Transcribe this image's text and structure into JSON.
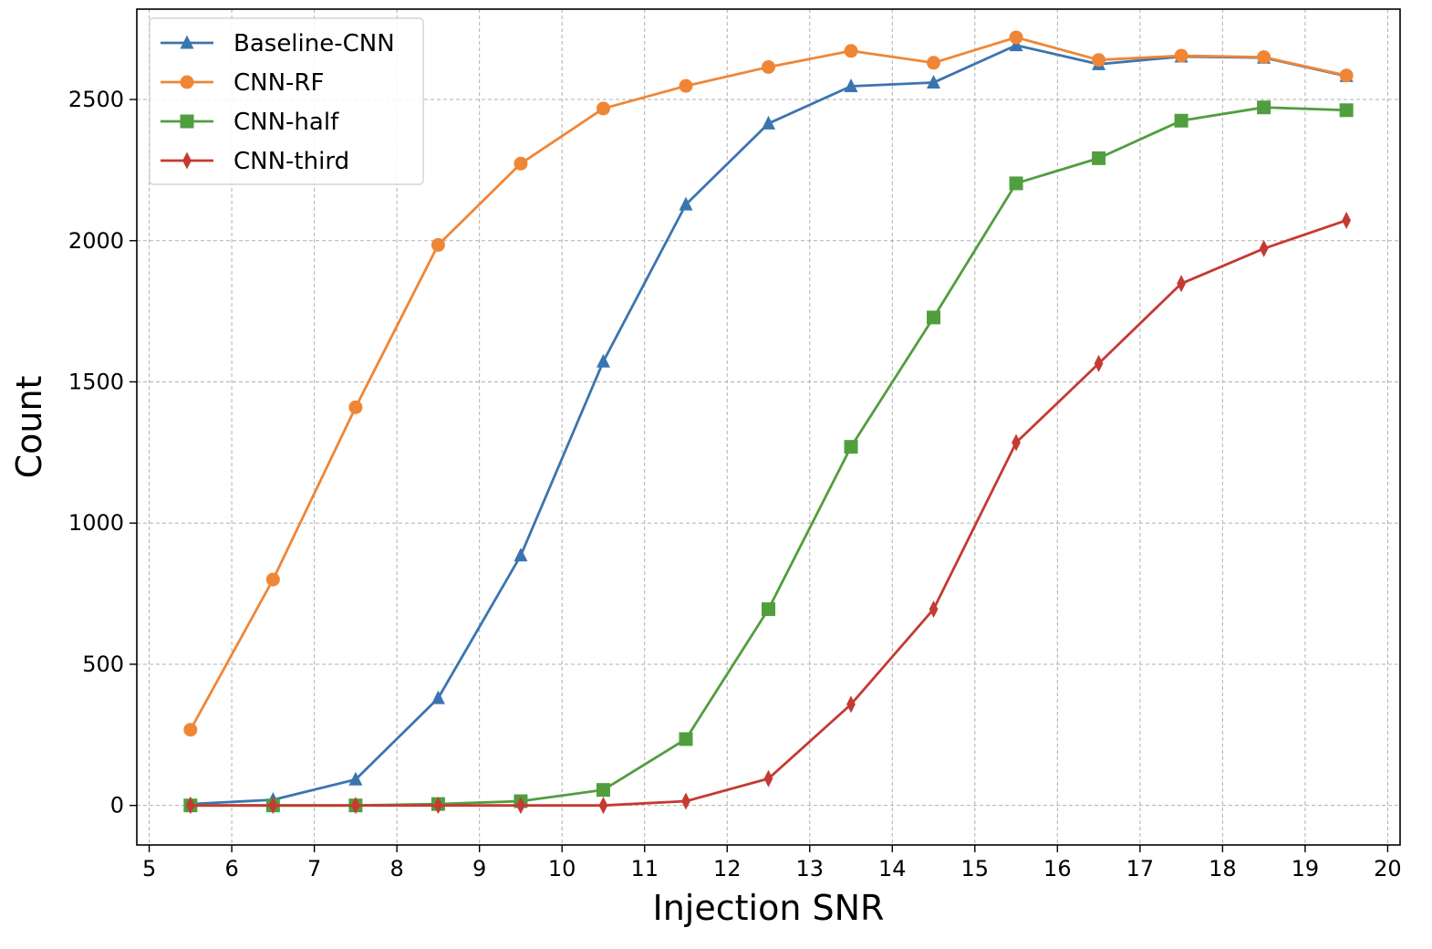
{
  "chart_data": {
    "type": "line",
    "title": "",
    "xlabel": "Injection SNR",
    "ylabel": "Count",
    "xlim": [
      4.85,
      20.15
    ],
    "ylim": [
      -140,
      2820
    ],
    "xticks": [
      5,
      6,
      7,
      8,
      9,
      10,
      11,
      12,
      13,
      14,
      15,
      16,
      17,
      18,
      19,
      20
    ],
    "yticks": [
      0,
      500,
      1000,
      1500,
      2000,
      2500
    ],
    "grid": true,
    "legend_position": "top-left",
    "x": [
      5.5,
      6.5,
      7.5,
      8.5,
      9.5,
      10.5,
      11.5,
      12.5,
      13.5,
      14.5,
      15.5,
      16.5,
      17.5,
      18.5,
      19.5
    ],
    "series": [
      {
        "name": "Baseline-CNN",
        "color": "#3b75af",
        "marker": "triangle",
        "values": [
          5,
          20,
          92,
          380,
          885,
          1572,
          2128,
          2415,
          2547,
          2560,
          2692,
          2625,
          2652,
          2648,
          2583
        ]
      },
      {
        "name": "CNN-RF",
        "color": "#ef8636",
        "marker": "circle",
        "values": [
          268,
          800,
          1410,
          1985,
          2273,
          2468,
          2548,
          2615,
          2672,
          2630,
          2720,
          2640,
          2655,
          2650,
          2585
        ]
      },
      {
        "name": "CNN-half",
        "color": "#519e3e",
        "marker": "square",
        "values": [
          0,
          0,
          0,
          5,
          15,
          55,
          235,
          695,
          1270,
          1728,
          2203,
          2292,
          2425,
          2472,
          2462
        ]
      },
      {
        "name": "CNN-third",
        "color": "#c53a32",
        "marker": "diamond",
        "values": [
          0,
          0,
          0,
          0,
          0,
          0,
          15,
          95,
          358,
          695,
          1285,
          1565,
          1848,
          1972,
          2072
        ]
      }
    ]
  }
}
